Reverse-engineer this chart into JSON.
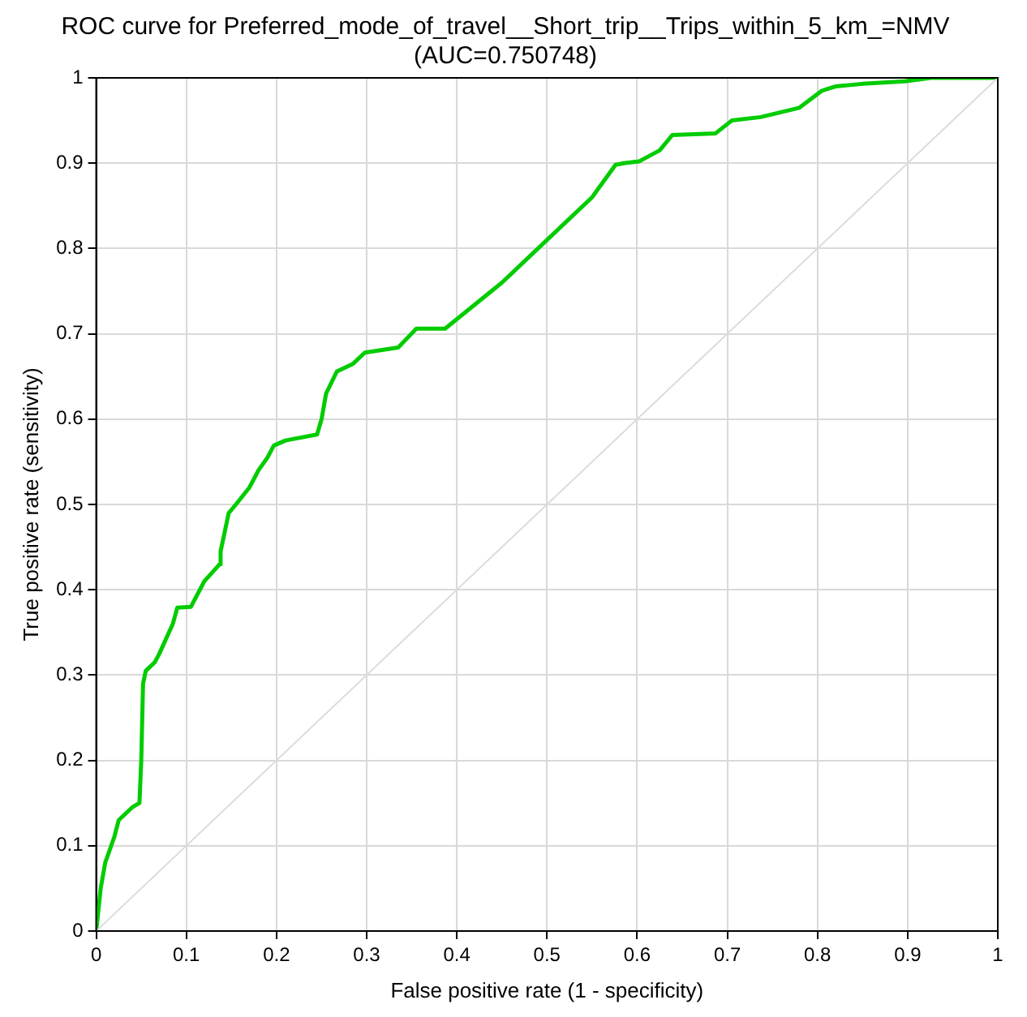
{
  "chart_data": {
    "type": "line",
    "title": "ROC curve for Preferred_mode_of_travel__Short_trip__Trips_within_5_km_=NMV",
    "subtitle": "(AUC=0.750748)",
    "xlabel": "False positive rate (1 - specificity)",
    "ylabel": "True positive rate (sensitivity)",
    "x": [
      0,
      0.005,
      0.01,
      0.02,
      0.025,
      0.04,
      0.048,
      0.05,
      0.052,
      0.055,
      0.065,
      0.07,
      0.085,
      0.09,
      0.105,
      0.11,
      0.12,
      0.137,
      0.138,
      0.147,
      0.155,
      0.17,
      0.18,
      0.19,
      0.197,
      0.21,
      0.245,
      0.25,
      0.255,
      0.267,
      0.285,
      0.298,
      0.335,
      0.345,
      0.355,
      0.387,
      0.45,
      0.5,
      0.55,
      0.576,
      0.585,
      0.602,
      0.625,
      0.639,
      0.687,
      0.705,
      0.737,
      0.78,
      0.805,
      0.82,
      0.85,
      0.897,
      0.926,
      1
    ],
    "series": [
      {
        "color": "#00cc00",
        "values": [
          0,
          0.05,
          0.08,
          0.11,
          0.13,
          0.145,
          0.15,
          0.2,
          0.29,
          0.305,
          0.315,
          0.325,
          0.36,
          0.379,
          0.38,
          0.39,
          0.41,
          0.43,
          0.445,
          0.49,
          0.5,
          0.52,
          0.54,
          0.555,
          0.569,
          0.575,
          0.582,
          0.6,
          0.63,
          0.656,
          0.665,
          0.678,
          0.684,
          0.695,
          0.706,
          0.706,
          0.76,
          0.81,
          0.86,
          0.898,
          0.9,
          0.902,
          0.915,
          0.933,
          0.935,
          0.95,
          0.954,
          0.965,
          0.985,
          0.99,
          0.993,
          0.996,
          1,
          1
        ]
      },
      {
        "color": "#dcdcdc",
        "x": [
          0,
          1
        ],
        "values": [
          0,
          1
        ]
      }
    ],
    "xlim": [
      0,
      1
    ],
    "ylim": [
      0,
      1
    ],
    "xticks": [
      0,
      0.1,
      0.2,
      0.3,
      0.4,
      0.5,
      0.6,
      0.7,
      0.8,
      0.9,
      1
    ],
    "yticks": [
      0,
      0.1,
      0.2,
      0.3,
      0.4,
      0.5,
      0.6,
      0.7,
      0.8,
      0.9,
      1
    ],
    "grid": true,
    "legend": false,
    "marker": "none",
    "line_style": "solid"
  }
}
